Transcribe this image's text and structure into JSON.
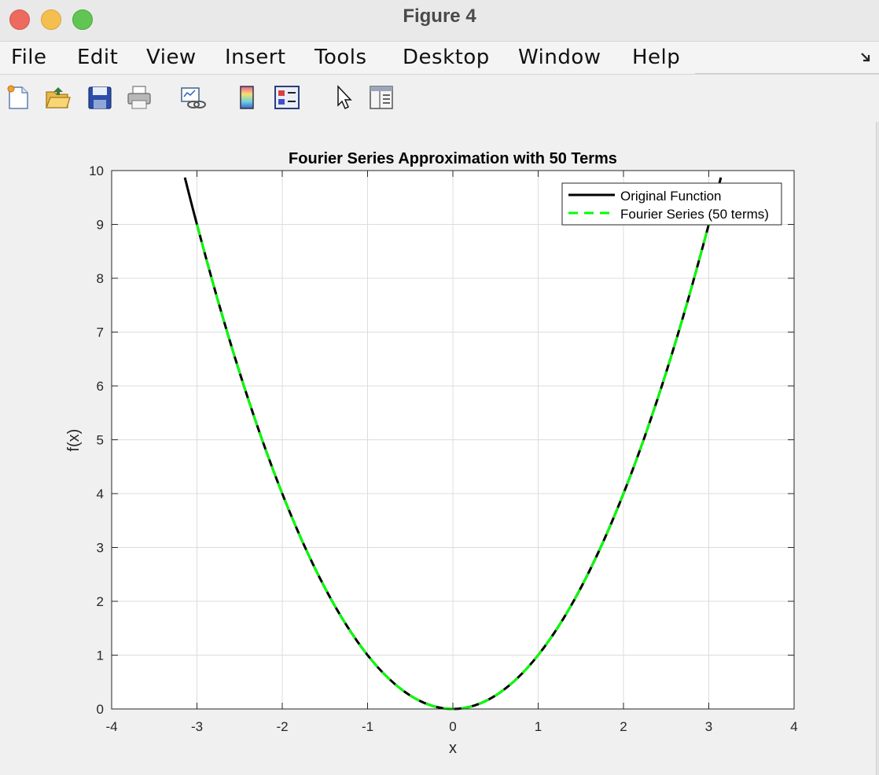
{
  "window": {
    "title": "Figure 4",
    "controls": [
      "close",
      "minimize",
      "zoom"
    ]
  },
  "menu": {
    "items": [
      "File",
      "Edit",
      "View",
      "Insert",
      "Tools",
      "Desktop",
      "Window",
      "Help"
    ]
  },
  "toolbar": {
    "icons": [
      "new-figure-icon",
      "open-file-icon",
      "save-icon",
      "print-icon",
      "link-plot-icon",
      "insert-colorbar-icon",
      "insert-legend-icon",
      "edit-plot-icon",
      "property-inspector-icon"
    ]
  },
  "colors": {
    "original": "#000000",
    "fourier": "#00ff00",
    "grid": "#dcdcdc"
  },
  "chart_data": {
    "type": "line",
    "title": "Fourier Series Approximation with 50 Terms",
    "xlabel": "x",
    "ylabel": "f(x)",
    "xlim": [
      -4,
      4
    ],
    "ylim": [
      0,
      10
    ],
    "xticks": [
      -4,
      -3,
      -2,
      -1,
      0,
      1,
      2,
      3,
      4
    ],
    "yticks": [
      0,
      1,
      2,
      3,
      4,
      5,
      6,
      7,
      8,
      9,
      10
    ],
    "grid": true,
    "legend_position": "top-right",
    "series": [
      {
        "name": "Original Function",
        "style": "solid",
        "color": "#000000",
        "x": [
          -3.1416,
          -3.0,
          -2.75,
          -2.5,
          -2.25,
          -2.0,
          -1.75,
          -1.5,
          -1.25,
          -1.0,
          -0.75,
          -0.5,
          -0.25,
          0.0,
          0.25,
          0.5,
          0.75,
          1.0,
          1.25,
          1.5,
          1.75,
          2.0,
          2.25,
          2.5,
          2.75,
          3.0,
          3.1416
        ],
        "y": [
          9.8696,
          9.0,
          7.5625,
          6.25,
          5.0625,
          4.0,
          3.0625,
          2.25,
          1.5625,
          1.0,
          0.5625,
          0.25,
          0.0625,
          0.0,
          0.0625,
          0.25,
          0.5625,
          1.0,
          1.5625,
          2.25,
          3.0625,
          4.0,
          5.0625,
          6.25,
          7.5625,
          9.0,
          9.8696
        ]
      },
      {
        "name": "Fourier Series (50 terms)",
        "style": "dashed",
        "color": "#00ff00",
        "x": [
          -3.0,
          -2.75,
          -2.5,
          -2.25,
          -2.0,
          -1.75,
          -1.5,
          -1.25,
          -1.0,
          -0.75,
          -0.5,
          -0.25,
          0.0,
          0.25,
          0.5,
          0.75,
          1.0,
          1.25,
          1.5,
          1.75,
          2.0,
          2.25,
          2.5,
          2.75,
          3.0
        ],
        "y": [
          9.0,
          7.5625,
          6.25,
          5.0625,
          4.0,
          3.0625,
          2.25,
          1.5625,
          1.0,
          0.5625,
          0.25,
          0.0625,
          0.0,
          0.0625,
          0.25,
          0.5625,
          1.0,
          1.5625,
          2.25,
          3.0625,
          4.0,
          5.0625,
          6.25,
          7.5625,
          9.0
        ]
      }
    ]
  }
}
